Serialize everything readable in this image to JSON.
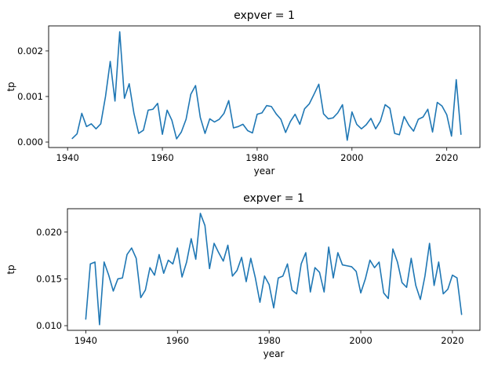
{
  "chart_data": [
    {
      "type": "line",
      "title": "expver = 1",
      "xlabel": "year",
      "ylabel": "tp",
      "xlim": [
        1936,
        2027
      ],
      "ylim": [
        -0.00012,
        0.00255
      ],
      "xticks": [
        1940,
        1960,
        1980,
        2000,
        2020
      ],
      "xtick_labels": [
        "1940",
        "1960",
        "1980",
        "2000",
        "2020"
      ],
      "yticks": [
        0.0,
        0.001,
        0.002
      ],
      "ytick_labels": [
        "0.000",
        "0.001",
        "0.002"
      ],
      "grid": false,
      "color": "#1f77b4",
      "x": [
        1941,
        1942,
        1943,
        1944,
        1945,
        1946,
        1947,
        1948,
        1949,
        1950,
        1951,
        1952,
        1953,
        1954,
        1955,
        1956,
        1957,
        1958,
        1959,
        1960,
        1961,
        1962,
        1963,
        1964,
        1965,
        1966,
        1967,
        1968,
        1969,
        1970,
        1971,
        1972,
        1973,
        1974,
        1975,
        1976,
        1977,
        1978,
        1979,
        1980,
        1981,
        1982,
        1983,
        1984,
        1985,
        1986,
        1987,
        1988,
        1989,
        1990,
        1991,
        1992,
        1993,
        1994,
        1995,
        1996,
        1997,
        1998,
        1999,
        2000,
        2001,
        2002,
        2003,
        2004,
        2005,
        2006,
        2007,
        2008,
        2009,
        2010,
        2011,
        2012,
        2013,
        2014,
        2015,
        2016,
        2017,
        2018,
        2019,
        2020,
        2021,
        2022,
        2023
      ],
      "y": [
        8e-05,
        0.00018,
        0.00063,
        0.00034,
        0.0004,
        0.00029,
        0.0004,
        0.001,
        0.00177,
        0.0009,
        0.00242,
        0.00096,
        0.00128,
        0.00063,
        0.00019,
        0.00026,
        0.0007,
        0.00072,
        0.00085,
        0.00017,
        0.0007,
        0.00048,
        7e-05,
        0.00022,
        0.0005,
        0.00105,
        0.00124,
        0.00054,
        0.00019,
        0.00051,
        0.00044,
        0.0005,
        0.00063,
        0.00091,
        0.00031,
        0.00034,
        0.00039,
        0.00025,
        0.0002,
        0.00061,
        0.00064,
        0.0008,
        0.00078,
        0.00062,
        0.0005,
        0.00021,
        0.00045,
        0.00061,
        0.00039,
        0.00073,
        0.00084,
        0.00105,
        0.00127,
        0.00062,
        0.00051,
        0.00053,
        0.00064,
        0.00082,
        4e-05,
        0.00066,
        0.00039,
        0.00029,
        0.00038,
        0.00052,
        0.00029,
        0.00046,
        0.00082,
        0.00074,
        0.00019,
        0.00016,
        0.00056,
        0.00037,
        0.00024,
        0.0005,
        0.00055,
        0.00072,
        0.00022,
        0.00087,
        0.00079,
        0.0006,
        0.00013,
        0.00137,
        0.00017
      ]
    },
    {
      "type": "line",
      "title": "expver = 1",
      "xlabel": "year",
      "ylabel": "tp",
      "xlim": [
        1936,
        2026
      ],
      "ylim": [
        0.0095,
        0.0225
      ],
      "xticks": [
        1940,
        1960,
        1980,
        2000,
        2020
      ],
      "xtick_labels": [
        "1940",
        "1960",
        "1980",
        "2000",
        "2020"
      ],
      "yticks": [
        0.01,
        0.015,
        0.02
      ],
      "ytick_labels": [
        "0.010",
        "0.015",
        "0.020"
      ],
      "grid": false,
      "color": "#1f77b4",
      "x": [
        1940,
        1941,
        1942,
        1943,
        1944,
        1945,
        1946,
        1947,
        1948,
        1949,
        1950,
        1951,
        1952,
        1953,
        1954,
        1955,
        1956,
        1957,
        1958,
        1959,
        1960,
        1961,
        1962,
        1963,
        1964,
        1965,
        1966,
        1967,
        1968,
        1969,
        1970,
        1971,
        1972,
        1973,
        1974,
        1975,
        1976,
        1977,
        1978,
        1979,
        1980,
        1981,
        1982,
        1983,
        1984,
        1985,
        1986,
        1987,
        1988,
        1989,
        1990,
        1991,
        1992,
        1993,
        1994,
        1995,
        1996,
        1997,
        1998,
        1999,
        2000,
        2001,
        2002,
        2003,
        2004,
        2005,
        2006,
        2007,
        2008,
        2009,
        2010,
        2011,
        2012,
        2013,
        2014,
        2015,
        2016,
        2017,
        2018,
        2019,
        2020,
        2021,
        2022
      ],
      "y": [
        0.0107,
        0.0166,
        0.0168,
        0.0101,
        0.0168,
        0.0154,
        0.0137,
        0.015,
        0.0151,
        0.0176,
        0.0183,
        0.0172,
        0.013,
        0.0138,
        0.0162,
        0.0154,
        0.0176,
        0.0156,
        0.017,
        0.0166,
        0.0183,
        0.0152,
        0.0168,
        0.0193,
        0.0171,
        0.022,
        0.0207,
        0.0161,
        0.0188,
        0.0178,
        0.0169,
        0.0186,
        0.0153,
        0.0159,
        0.0173,
        0.0147,
        0.0172,
        0.0151,
        0.0125,
        0.0153,
        0.0144,
        0.0119,
        0.0151,
        0.0153,
        0.0166,
        0.0138,
        0.0134,
        0.0166,
        0.0178,
        0.0136,
        0.0162,
        0.0157,
        0.0136,
        0.0184,
        0.0151,
        0.0178,
        0.0165,
        0.0164,
        0.0163,
        0.0158,
        0.0135,
        0.015,
        0.017,
        0.0162,
        0.0168,
        0.0135,
        0.0129,
        0.0182,
        0.0168,
        0.0146,
        0.0141,
        0.0172,
        0.0143,
        0.0128,
        0.0153,
        0.0188,
        0.0143,
        0.0168,
        0.0134,
        0.0139,
        0.0154,
        0.0151,
        0.0112
      ]
    }
  ]
}
